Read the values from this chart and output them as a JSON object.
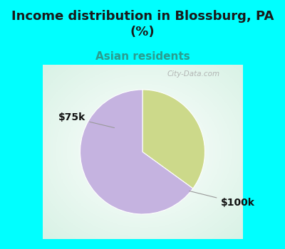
{
  "title": "Income distribution in Blossburg, PA\n(%)",
  "subtitle": "Asian residents",
  "title_color": "#1a1a1a",
  "subtitle_color": "#2a9d8f",
  "background_color": "#00ffff",
  "chart_bg_color": "#ffffff",
  "slices": [
    {
      "label": "$75k",
      "value": 35,
      "color": "#ccd98a"
    },
    {
      "label": "$100k",
      "value": 65,
      "color": "#c5b3e0"
    }
  ],
  "watermark": "City-Data.com",
  "watermark_color": "#aaaaaa",
  "title_fontsize": 13,
  "subtitle_fontsize": 11,
  "label_fontsize": 10
}
